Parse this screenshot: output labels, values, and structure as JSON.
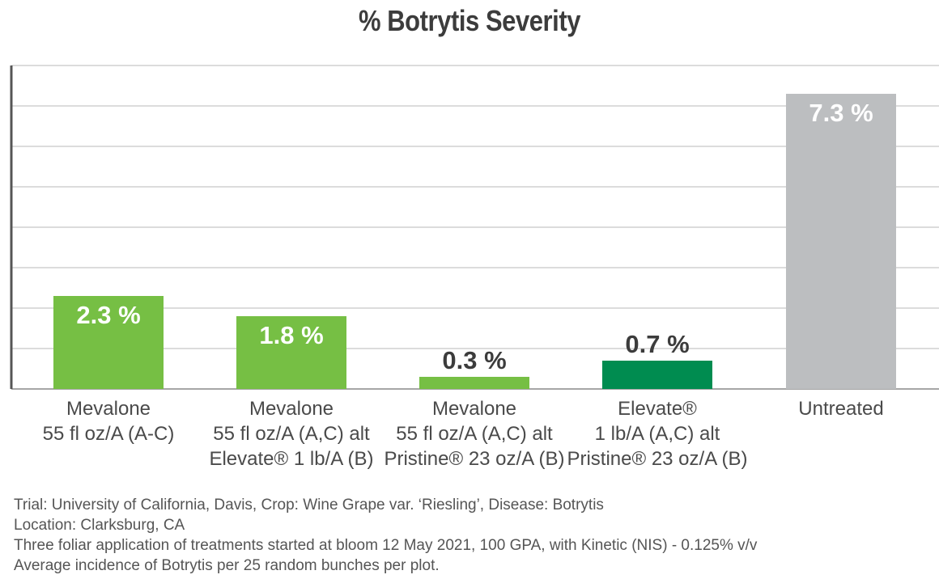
{
  "chart_data": {
    "type": "bar",
    "title": "% Botrytis Severity",
    "categories": [
      [
        "Mevalone",
        "55 fl oz/A (A-C)"
      ],
      [
        "Mevalone",
        "55 fl oz/A (A,C) alt",
        "Elevate® 1 lb/A (B)"
      ],
      [
        "Mevalone",
        "55 fl oz/A (A,C) alt",
        "Pristine® 23 oz/A (B)"
      ],
      [
        "Elevate®",
        "1 lb/A (A,C) alt",
        "Pristine® 23 oz/A (B)"
      ],
      [
        "Untreated"
      ]
    ],
    "values": [
      2.3,
      1.8,
      0.3,
      0.7,
      7.3
    ],
    "value_labels": [
      "2.3 %",
      "1.8 %",
      "0.3 %",
      "0.7 %",
      "7.3 %"
    ],
    "label_inside": [
      true,
      true,
      false,
      false,
      true
    ],
    "ylim": [
      0,
      8
    ],
    "grid": true,
    "bar_colors": [
      "#76bf44",
      "#76bf44",
      "#76bf44",
      "#008c50",
      "#bcbec0"
    ]
  },
  "footnotes": [
    "Trial: University of California, Davis, Crop: Wine Grape var. ‘Riesling’, Disease: Botrytis",
    "Location: Clarksburg, CA",
    "Three foliar application of treatments started at bloom 12 May 2021, 100 GPA, with Kinetic (NIS) - 0.125% v/v",
    "Average incidence of Botrytis per 25 random bunches per plot."
  ]
}
